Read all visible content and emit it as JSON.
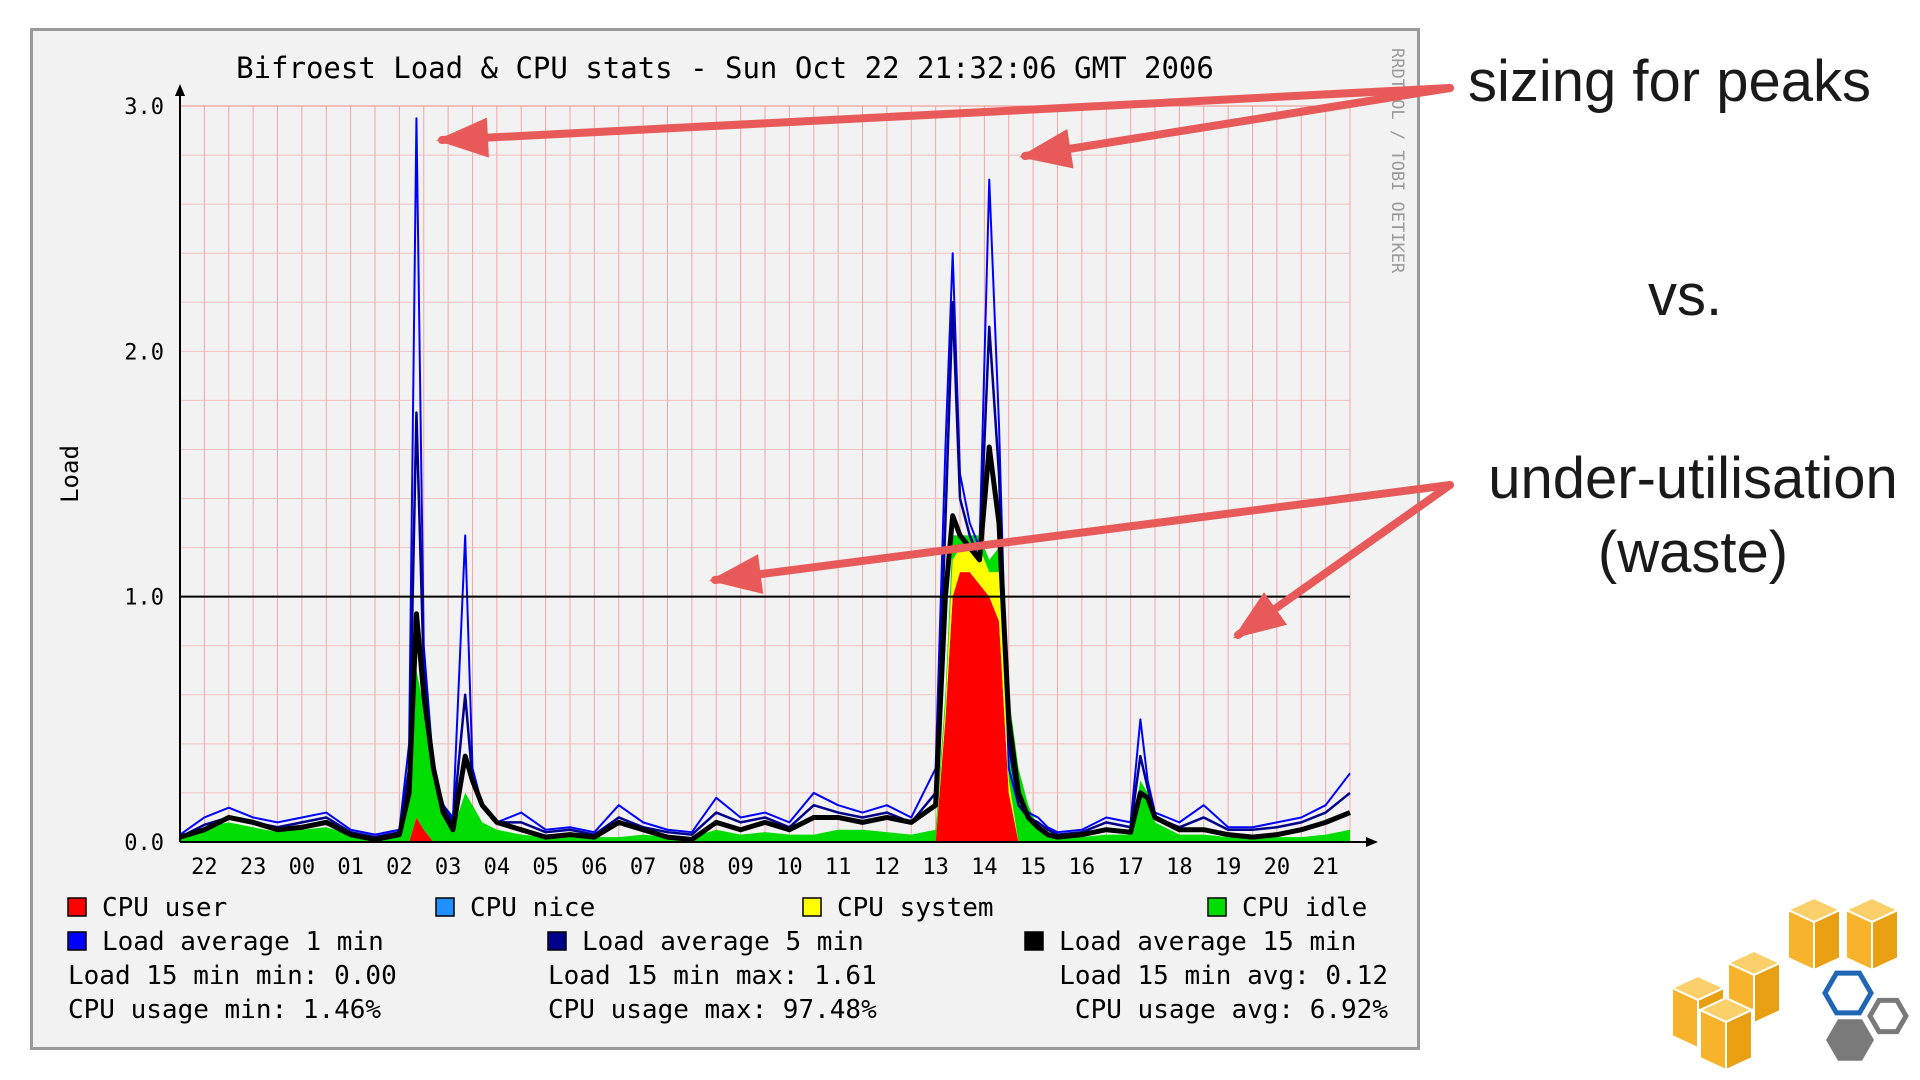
{
  "chart_data": {
    "type": "area",
    "title": "Bifroest Load & CPU stats - Sun Oct 22 21:32:06 GMT 2006",
    "watermark": "RRDTOOL / TOBI OETIKER",
    "ylabel": "Load",
    "ylim": [
      0,
      3.0
    ],
    "yticks": [
      "0.0",
      "1.0",
      "2.0",
      "3.0"
    ],
    "xticks": [
      "22",
      "23",
      "00",
      "01",
      "02",
      "03",
      "04",
      "05",
      "06",
      "07",
      "08",
      "09",
      "10",
      "11",
      "12",
      "13",
      "14",
      "15",
      "16",
      "17",
      "18",
      "19",
      "20",
      "21"
    ],
    "threshold_line": 1.0,
    "grid": true,
    "x_hours": [
      0,
      0.5,
      1,
      1.5,
      2,
      2.5,
      3,
      3.5,
      4,
      4.5,
      4.7,
      4.85,
      5,
      5.2,
      5.4,
      5.6,
      5.85,
      6,
      6.2,
      6.5,
      7,
      7.5,
      8,
      8.5,
      9,
      9.5,
      10,
      10.5,
      11,
      11.5,
      12,
      12.5,
      13,
      13.5,
      14,
      14.5,
      15,
      15.5,
      15.7,
      15.85,
      16,
      16.2,
      16.4,
      16.6,
      16.8,
      17,
      17.2,
      17.4,
      17.6,
      17.8,
      18,
      18.5,
      19,
      19.5,
      19.7,
      19.85,
      20,
      20.5,
      21,
      21.5,
      22,
      22.5,
      23,
      23.5,
      24
    ],
    "series": [
      {
        "name": "CPU user",
        "color": "#ff0000",
        "values": [
          0,
          0,
          0,
          0,
          0,
          0,
          0,
          0,
          0,
          0,
          0,
          0.1,
          0.05,
          0,
          0,
          0,
          0,
          0,
          0,
          0,
          0,
          0,
          0,
          0,
          0,
          0,
          0,
          0,
          0,
          0,
          0,
          0,
          0,
          0,
          0,
          0,
          0,
          0,
          0.5,
          1.0,
          1.1,
          1.1,
          1.05,
          1.0,
          0.9,
          0.2,
          0,
          0,
          0,
          0,
          0,
          0,
          0,
          0,
          0,
          0,
          0,
          0,
          0,
          0,
          0,
          0,
          0,
          0,
          0
        ]
      },
      {
        "name": "CPU nice",
        "color": "#1e90ff",
        "values": [
          0,
          0,
          0,
          0,
          0,
          0,
          0,
          0,
          0,
          0,
          0,
          0,
          0,
          0,
          0,
          0,
          0,
          0,
          0,
          0,
          0,
          0,
          0,
          0,
          0,
          0,
          0,
          0,
          0,
          0,
          0,
          0,
          0,
          0,
          0,
          0,
          0,
          0,
          0,
          0,
          0,
          0,
          0,
          0,
          0,
          0,
          0,
          0,
          0,
          0,
          0,
          0,
          0,
          0,
          0,
          0,
          0,
          0,
          0,
          0,
          0,
          0,
          0,
          0,
          0
        ]
      },
      {
        "name": "CPU system",
        "color": "#ffff00",
        "values": [
          0,
          0,
          0,
          0,
          0,
          0,
          0,
          0,
          0,
          0,
          0,
          0,
          0,
          0,
          0,
          0,
          0,
          0,
          0,
          0,
          0,
          0,
          0,
          0,
          0,
          0,
          0,
          0,
          0,
          0,
          0,
          0,
          0,
          0,
          0,
          0,
          0,
          0,
          0.05,
          0.15,
          0.1,
          0.1,
          0.15,
          0.1,
          0.2,
          0.05,
          0,
          0,
          0,
          0,
          0,
          0,
          0,
          0,
          0,
          0,
          0,
          0,
          0,
          0,
          0,
          0,
          0,
          0,
          0
        ]
      },
      {
        "name": "CPU idle",
        "color": "#00dd00",
        "values": [
          0.02,
          0.06,
          0.08,
          0.06,
          0.04,
          0.05,
          0.06,
          0.03,
          0.02,
          0.03,
          0.2,
          0.6,
          0.5,
          0.25,
          0.12,
          0.05,
          0.2,
          0.15,
          0.08,
          0.05,
          0.03,
          0.02,
          0.03,
          0.02,
          0.02,
          0.03,
          0.02,
          0.02,
          0.05,
          0.03,
          0.04,
          0.03,
          0.03,
          0.05,
          0.05,
          0.04,
          0.03,
          0.05,
          0.05,
          0.1,
          0.05,
          0.05,
          0.05,
          0.05,
          0.1,
          0.35,
          0.3,
          0.15,
          0.06,
          0.03,
          0.02,
          0.02,
          0.03,
          0.03,
          0.25,
          0.2,
          0.08,
          0.03,
          0.03,
          0.02,
          0.02,
          0.02,
          0.02,
          0.03,
          0.05
        ]
      },
      {
        "name": "Load average 1 min",
        "color": "#0000ff",
        "values": [
          0.03,
          0.1,
          0.14,
          0.1,
          0.08,
          0.1,
          0.12,
          0.05,
          0.03,
          0.05,
          0.4,
          2.95,
          0.8,
          0.3,
          0.15,
          0.1,
          1.25,
          0.3,
          0.15,
          0.08,
          0.12,
          0.05,
          0.06,
          0.04,
          0.15,
          0.08,
          0.05,
          0.04,
          0.18,
          0.1,
          0.12,
          0.08,
          0.2,
          0.15,
          0.12,
          0.15,
          0.1,
          0.3,
          1.6,
          2.4,
          1.5,
          1.3,
          1.2,
          2.7,
          1.7,
          0.3,
          0.15,
          0.12,
          0.1,
          0.06,
          0.04,
          0.05,
          0.1,
          0.08,
          0.5,
          0.25,
          0.12,
          0.08,
          0.15,
          0.06,
          0.06,
          0.08,
          0.1,
          0.15,
          0.28
        ]
      },
      {
        "name": "Load average 5 min",
        "color": "#00008b",
        "values": [
          0.02,
          0.07,
          0.1,
          0.08,
          0.06,
          0.08,
          0.1,
          0.04,
          0.02,
          0.04,
          0.3,
          1.75,
          0.7,
          0.3,
          0.15,
          0.08,
          0.6,
          0.25,
          0.15,
          0.08,
          0.08,
          0.04,
          0.05,
          0.03,
          0.1,
          0.06,
          0.04,
          0.03,
          0.12,
          0.08,
          0.1,
          0.06,
          0.15,
          0.12,
          0.1,
          0.12,
          0.08,
          0.2,
          1.3,
          2.2,
          1.4,
          1.25,
          1.15,
          2.1,
          1.5,
          0.4,
          0.15,
          0.1,
          0.08,
          0.05,
          0.03,
          0.04,
          0.08,
          0.06,
          0.35,
          0.22,
          0.1,
          0.06,
          0.1,
          0.05,
          0.05,
          0.06,
          0.08,
          0.12,
          0.2
        ]
      },
      {
        "name": "Load average 15 min",
        "color": "#000000",
        "values": [
          0.02,
          0.05,
          0.1,
          0.08,
          0.05,
          0.06,
          0.08,
          0.03,
          0.01,
          0.03,
          0.2,
          0.93,
          0.6,
          0.3,
          0.12,
          0.05,
          0.35,
          0.25,
          0.15,
          0.08,
          0.05,
          0.02,
          0.03,
          0.02,
          0.08,
          0.05,
          0.02,
          0.01,
          0.08,
          0.05,
          0.08,
          0.05,
          0.1,
          0.1,
          0.08,
          0.1,
          0.08,
          0.15,
          1.0,
          1.33,
          1.25,
          1.2,
          1.15,
          1.61,
          1.3,
          0.5,
          0.2,
          0.1,
          0.06,
          0.03,
          0.02,
          0.03,
          0.05,
          0.04,
          0.2,
          0.18,
          0.1,
          0.05,
          0.05,
          0.03,
          0.02,
          0.03,
          0.05,
          0.08,
          0.12
        ]
      }
    ],
    "stats": [
      {
        "label": "Load 15 min min: 0.00"
      },
      {
        "label": "Load 15 min max: 1.61"
      },
      {
        "label": "Load 15 min avg: 0.12"
      },
      {
        "label": "CPU usage min: 1.46%"
      },
      {
        "label": "CPU usage max: 97.48%"
      },
      {
        "label": "CPU usage avg: 6.92%"
      }
    ]
  },
  "annotations": {
    "peaks": "sizing for peaks",
    "vs": "vs.",
    "under_line1": "under-utilisation",
    "under_line2": "(waste)",
    "arrow_color": "#e85a5a"
  },
  "logo": {
    "name": "aws-logo-icon",
    "colors": [
      "#f7b32b",
      "#1f66b5",
      "#7a7a7a"
    ]
  }
}
